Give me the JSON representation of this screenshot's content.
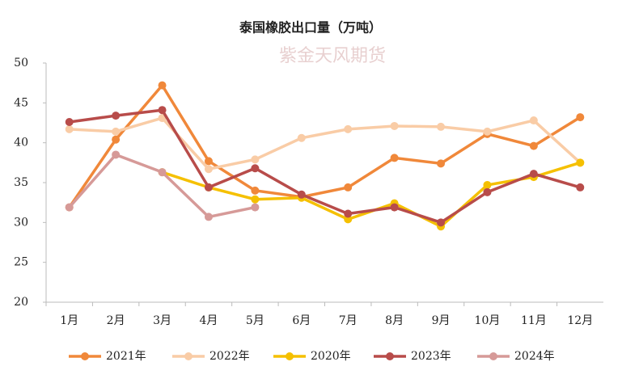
{
  "chart_data": {
    "type": "line",
    "title": "泰国橡胶出口量（万吨）",
    "watermark": "紫金天风期货",
    "categories": [
      "1月",
      "2月",
      "3月",
      "4月",
      "5月",
      "6月",
      "7月",
      "8月",
      "9月",
      "10月",
      "11月",
      "12月"
    ],
    "series": [
      {
        "name": "2021年",
        "color": "#f0883a",
        "values": [
          31.9,
          40.4,
          47.2,
          37.7,
          34.0,
          33.2,
          34.4,
          38.1,
          37.4,
          41.1,
          39.6,
          43.2
        ]
      },
      {
        "name": "2022年",
        "color": "#f9cca6",
        "values": [
          41.7,
          41.4,
          43.1,
          36.7,
          37.9,
          40.6,
          41.7,
          42.1,
          42.0,
          41.4,
          42.8,
          37.5
        ]
      },
      {
        "name": "2020年",
        "color": "#f5c000",
        "values": [
          null,
          null,
          36.3,
          34.4,
          32.9,
          33.1,
          30.4,
          32.4,
          29.5,
          34.7,
          35.7,
          37.5
        ]
      },
      {
        "name": "2023年",
        "color": "#b84c4a",
        "values": [
          42.6,
          43.4,
          44.1,
          34.4,
          36.8,
          33.5,
          31.1,
          31.9,
          30.0,
          33.8,
          36.1,
          34.4
        ]
      },
      {
        "name": "2024年",
        "color": "#d69a98",
        "values": [
          31.9,
          38.5,
          36.3,
          30.7,
          31.9,
          null,
          null,
          null,
          null,
          null,
          null,
          null
        ]
      }
    ],
    "ylim": [
      20,
      50
    ],
    "yticks": [
      20,
      25,
      30,
      35,
      40,
      45,
      50
    ],
    "grid": false,
    "legend": "bottom"
  }
}
